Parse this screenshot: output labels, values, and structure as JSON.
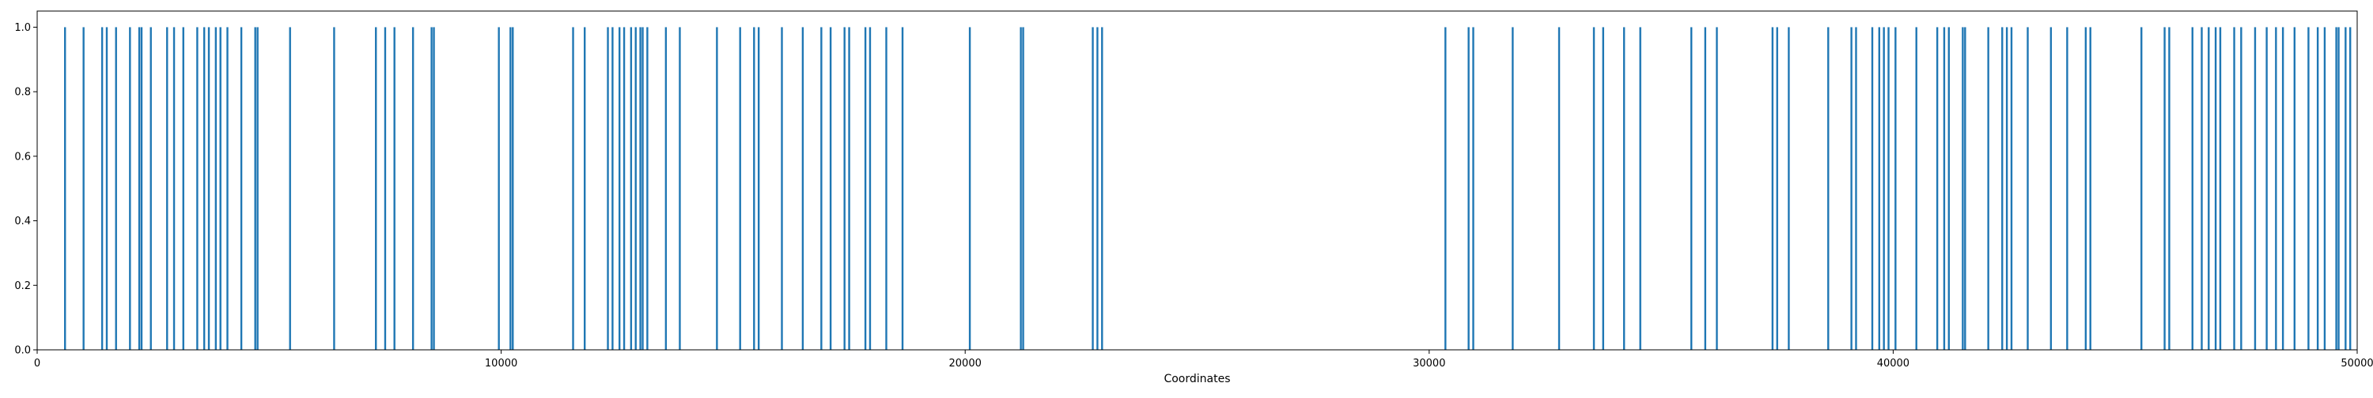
{
  "chart_data": {
    "type": "bar",
    "title": "",
    "xlabel": "Coordinates",
    "ylabel": "",
    "xlim": [
      0,
      50000
    ],
    "ylim": [
      0,
      1.05
    ],
    "grid": false,
    "color": "#1f77b4",
    "x_ticks": [
      0,
      10000,
      20000,
      30000,
      40000,
      50000
    ],
    "x_tick_labels": [
      "0",
      "10000",
      "20000",
      "30000",
      "40000",
      "50000"
    ],
    "y_ticks": [
      0.0,
      0.2,
      0.4,
      0.6,
      0.8,
      1.0
    ],
    "y_tick_labels": [
      "0.0",
      "0.2",
      "0.4",
      "0.6",
      "0.8",
      "1.0"
    ],
    "x": [
      600,
      1000,
      1400,
      1500,
      1700,
      2000,
      2200,
      2250,
      2450,
      2800,
      2950,
      3150,
      3450,
      3600,
      3700,
      3850,
      3950,
      4100,
      4400,
      4700,
      4750,
      5450,
      6400,
      7300,
      7500,
      7700,
      8100,
      8500,
      8550,
      9950,
      10200,
      10250,
      11550,
      11800,
      12300,
      12400,
      12550,
      12650,
      12800,
      12900,
      13000,
      13050,
      13150,
      13550,
      13850,
      14650,
      15150,
      15450,
      15550,
      16050,
      16500,
      16900,
      17100,
      17400,
      17500,
      17850,
      17950,
      18300,
      18650,
      20100,
      21200,
      21250,
      22750,
      22850,
      22950,
      30350,
      30850,
      30950,
      31800,
      32800,
      33550,
      33750,
      34200,
      34550,
      35650,
      35950,
      36200,
      37400,
      37500,
      37750,
      38600,
      39100,
      39200,
      39550,
      39700,
      39800,
      39900,
      40050,
      40500,
      40950,
      41100,
      41200,
      41500,
      41550,
      42050,
      42350,
      42450,
      42550,
      42900,
      43400,
      43750,
      44150,
      44250,
      45350,
      45850,
      45950,
      46450,
      46650,
      46800,
      46950,
      47050,
      47350,
      47500,
      47800,
      48050,
      48250,
      48400,
      48650,
      48950,
      49150,
      49300,
      49550,
      49600,
      49750,
      49850
    ]
  }
}
